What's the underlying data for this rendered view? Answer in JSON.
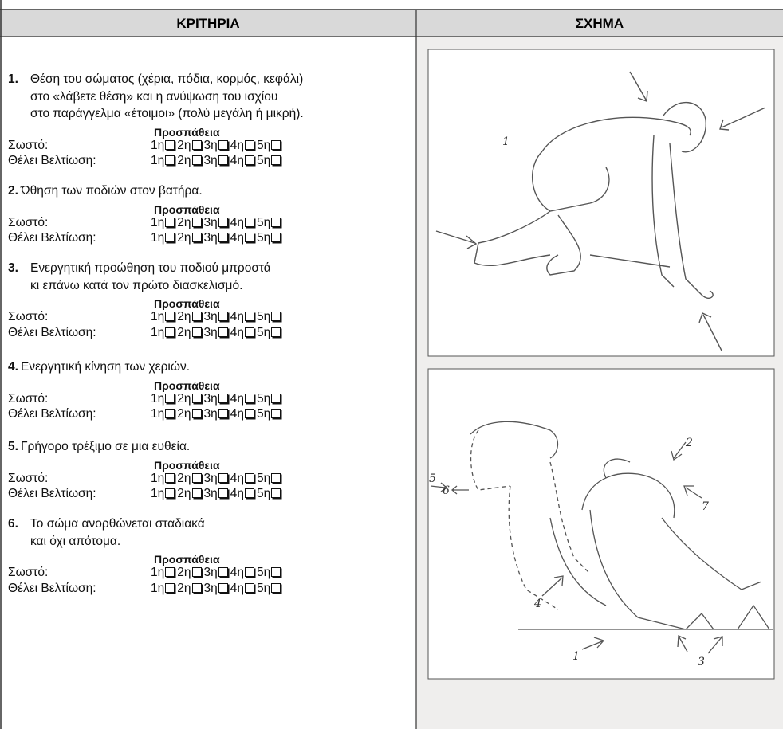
{
  "header": {
    "columns": [
      "ΚΡΙΤΗΡΙΑ",
      "ΣΧΗΜΑ"
    ]
  },
  "attempt_label": "Προσπάθεια",
  "rating_rows": [
    "Σωστό:",
    "Θέλει Βελτίωση:"
  ],
  "attempts": [
    "1η",
    "2η",
    "3η",
    "4η",
    "5η"
  ],
  "criteria": [
    {
      "number": "1.",
      "lines": [
        "Θέση του σώματος (χέρια, πόδια, κορμός, κεφάλι)",
        "στο «λάβετε θέση» και η ανύψωση του ισχίου",
        "στο παράγγελμα «έτοιμοι» (πολύ μεγάλη ή μικρή)."
      ]
    },
    {
      "number": "2.",
      "lines": [
        "Ώθηση των ποδιών στον βατήρα."
      ]
    },
    {
      "number": "3.",
      "lines": [
        "Ενεργητική προώθηση του ποδιού μπροστά",
        "κι επάνω κατά τον πρώτο διασκελισμό."
      ]
    },
    {
      "number": "4.",
      "lines": [
        "Ενεργητική κίνηση των χεριών."
      ]
    },
    {
      "number": "5.",
      "lines": [
        "Γρήγορο τρέξιμο σε μια ευθεία."
      ]
    },
    {
      "number": "6.",
      "lines": [
        "Το σώμα ανορθώνεται σταδιακά",
        "και όχι απότομα."
      ]
    }
  ],
  "figures": [
    {
      "labels": [
        "1"
      ]
    },
    {
      "labels": [
        "2",
        "7",
        "5",
        "6",
        "4",
        "1",
        "3"
      ]
    }
  ]
}
